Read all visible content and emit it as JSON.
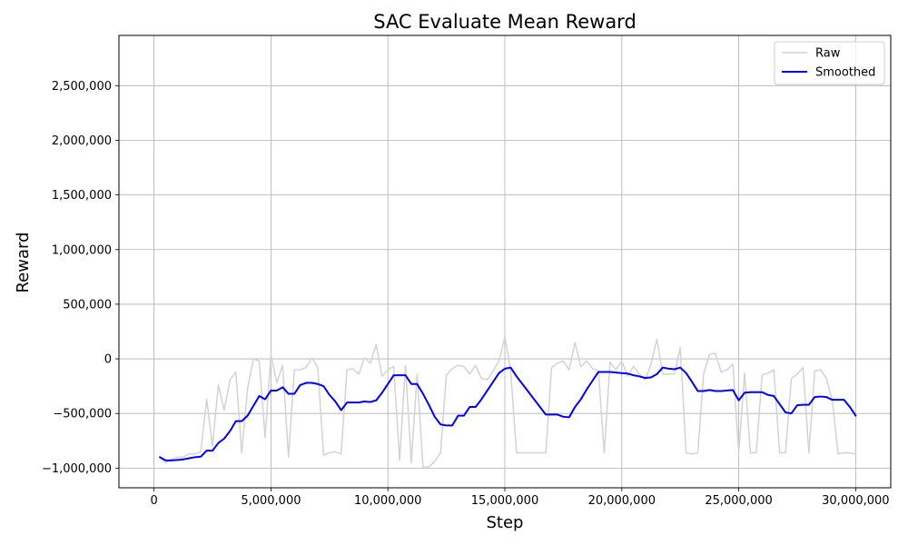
{
  "chart_data": {
    "type": "line",
    "title": "SAC Evaluate Mean Reward",
    "xlabel": "Step",
    "ylabel": "Reward",
    "xlim": [
      -1500000,
      31500000
    ],
    "ylim": [
      -1180000,
      2960000
    ],
    "grid": true,
    "legend_position": "top-right",
    "x_ticks": [
      0,
      5000000,
      10000000,
      15000000,
      20000000,
      25000000,
      30000000
    ],
    "x_tick_labels": [
      "0",
      "5,000,000",
      "10,000,000",
      "15,000,000",
      "20,000,000",
      "25,000,000",
      "30,000,000"
    ],
    "y_ticks": [
      -1000000,
      -500000,
      0,
      500000,
      1000000,
      1500000,
      2000000,
      2500000
    ],
    "y_tick_labels": [
      "−1,000,000",
      "−500,000",
      "0",
      "500,000",
      "1,000,000",
      "1,500,000",
      "2,000,000",
      "2,500,000"
    ],
    "series": [
      {
        "name": "Raw",
        "color": "#d3d3d3",
        "x": [
          250000,
          500000,
          750000,
          1000000,
          1250000,
          1500000,
          1750000,
          2000000,
          2250000,
          2500000,
          2750000,
          3000000,
          3250000,
          3500000,
          3750000,
          4000000,
          4250000,
          4500000,
          4750000,
          5000000,
          5250000,
          5500000,
          5750000,
          6000000,
          6250000,
          6500000,
          6750000,
          7000000,
          7250000,
          7500000,
          7750000,
          8000000,
          8250000,
          8500000,
          8750000,
          9000000,
          9250000,
          9500000,
          9750000,
          10000000,
          10250000,
          10500000,
          10750000,
          11000000,
          11250000,
          11500000,
          11750000,
          12000000,
          12250000,
          12500000,
          12750000,
          13000000,
          13250000,
          13500000,
          13750000,
          14000000,
          14250000,
          14500000,
          14750000,
          15000000,
          15250000,
          15500000,
          15750000,
          16000000,
          16250000,
          16500000,
          16750000,
          17000000,
          17250000,
          17500000,
          17750000,
          18000000,
          18250000,
          18500000,
          18750000,
          19000000,
          19250000,
          19500000,
          19750000,
          20000000,
          20250000,
          20500000,
          20750000,
          21000000,
          21250000,
          21500000,
          21750000,
          22000000,
          22250000,
          22500000,
          22750000,
          23000000,
          23250000,
          23500000,
          23750000,
          24000000,
          24250000,
          24500000,
          24750000,
          25000000,
          25250000,
          25500000,
          25750000,
          26000000,
          26250000,
          26500000,
          26750000,
          27000000,
          27250000,
          27500000,
          27750000,
          28000000,
          28250000,
          28500000,
          28750000,
          29000000,
          29250000,
          29500000,
          29750000,
          30000000
        ],
        "values": [
          -900000,
          -950000,
          -920000,
          -900000,
          -900000,
          -870000,
          -870000,
          -850000,
          -370000,
          -800000,
          -240000,
          -470000,
          -190000,
          -120000,
          -860000,
          -270000,
          0,
          -20000,
          -720000,
          40000,
          -220000,
          -60000,
          -900000,
          -100000,
          -100000,
          -80000,
          10000,
          -80000,
          -880000,
          -860000,
          -850000,
          -870000,
          -100000,
          -90000,
          -140000,
          10000,
          -40000,
          130000,
          -160000,
          -100000,
          -70000,
          -930000,
          -60000,
          -950000,
          -140000,
          -990000,
          -990000,
          -940000,
          -860000,
          -150000,
          -90000,
          -60000,
          -70000,
          -140000,
          -60000,
          -180000,
          -190000,
          -110000,
          -20000,
          200000,
          -110000,
          -860000,
          -860000,
          -860000,
          -860000,
          -860000,
          -860000,
          -80000,
          -40000,
          -20000,
          -100000,
          150000,
          -70000,
          -20000,
          -90000,
          -110000,
          -860000,
          -30000,
          -100000,
          -20000,
          -160000,
          -70000,
          -140000,
          -190000,
          -50000,
          180000,
          -140000,
          -140000,
          -140000,
          100000,
          -860000,
          -870000,
          -860000,
          -140000,
          40000,
          50000,
          -120000,
          -100000,
          -50000,
          -860000,
          -130000,
          -860000,
          -860000,
          -150000,
          -130000,
          -100000,
          -860000,
          -860000,
          -180000,
          -140000,
          -80000,
          -860000,
          -110000,
          -100000,
          -180000,
          -380000,
          -870000,
          -860000,
          -860000,
          -870000
        ]
      },
      {
        "name": "Smoothed",
        "color": "#0000ff",
        "x": [
          250000,
          500000,
          750000,
          1000000,
          1250000,
          1500000,
          1750000,
          2000000,
          2250000,
          2500000,
          2750000,
          3000000,
          3250000,
          3500000,
          3750000,
          4000000,
          4250000,
          4500000,
          4750000,
          5000000,
          5250000,
          5500000,
          5750000,
          6000000,
          6250000,
          6500000,
          6750000,
          7000000,
          7250000,
          7500000,
          7750000,
          8000000,
          8250000,
          8500000,
          8750000,
          9000000,
          9250000,
          9500000,
          9750000,
          10000000,
          10250000,
          10500000,
          10750000,
          11000000,
          11250000,
          11500000,
          11750000,
          12000000,
          12250000,
          12500000,
          12750000,
          13000000,
          13250000,
          13500000,
          13750000,
          14000000,
          14250000,
          14500000,
          14750000,
          15000000,
          15250000,
          15500000,
          15750000,
          16000000,
          16250000,
          16500000,
          16750000,
          17000000,
          17250000,
          17500000,
          17750000,
          18000000,
          18250000,
          18500000,
          18750000,
          19000000,
          19250000,
          19500000,
          19750000,
          20000000,
          20250000,
          20500000,
          20750000,
          21000000,
          21250000,
          21500000,
          21750000,
          22000000,
          22250000,
          22500000,
          22750000,
          23000000,
          23250000,
          23500000,
          23750000,
          24000000,
          24250000,
          24500000,
          24750000,
          25000000,
          25250000,
          25500000,
          25750000,
          26000000,
          26250000,
          26500000,
          26750000,
          27000000,
          27250000,
          27500000,
          27750000,
          28000000,
          28250000,
          28500000,
          28750000,
          29000000,
          29250000,
          29500000,
          29750000,
          30000000
        ],
        "values": [
          -900000,
          -930000,
          -930000,
          -925000,
          -920000,
          -910000,
          -900000,
          -895000,
          -840000,
          -840000,
          -770000,
          -730000,
          -660000,
          -570000,
          -570000,
          -520000,
          -430000,
          -340000,
          -370000,
          -290000,
          -290000,
          -260000,
          -320000,
          -320000,
          -240000,
          -220000,
          -220000,
          -230000,
          -250000,
          -330000,
          -390000,
          -470000,
          -400000,
          -400000,
          -400000,
          -390000,
          -395000,
          -380000,
          -310000,
          -230000,
          -150000,
          -150000,
          -150000,
          -230000,
          -230000,
          -320000,
          -420000,
          -530000,
          -600000,
          -610000,
          -610000,
          -520000,
          -520000,
          -440000,
          -440000,
          -370000,
          -290000,
          -210000,
          -130000,
          -90000,
          -80000,
          -160000,
          -230000,
          -300000,
          -370000,
          -440000,
          -510000,
          -510000,
          -510000,
          -530000,
          -535000,
          -440000,
          -370000,
          -280000,
          -200000,
          -120000,
          -120000,
          -120000,
          -125000,
          -130000,
          -135000,
          -150000,
          -160000,
          -175000,
          -170000,
          -140000,
          -80000,
          -90000,
          -95000,
          -80000,
          -130000,
          -210000,
          -295000,
          -295000,
          -285000,
          -295000,
          -295000,
          -290000,
          -285000,
          -380000,
          -310000,
          -305000,
          -305000,
          -305000,
          -330000,
          -340000,
          -415000,
          -490000,
          -500000,
          -425000,
          -420000,
          -420000,
          -350000,
          -345000,
          -350000,
          -375000,
          -375000,
          -375000,
          -440000,
          -520000
        ]
      }
    ]
  }
}
